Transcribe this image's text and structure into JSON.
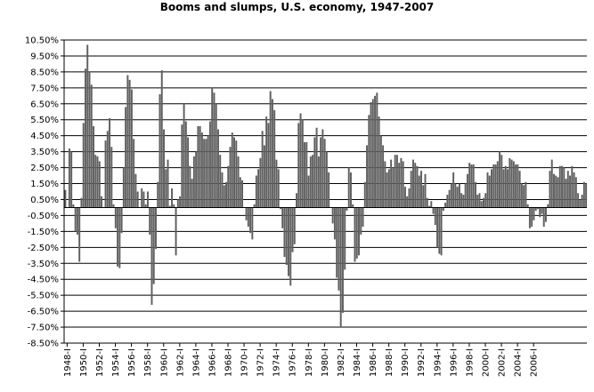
{
  "chart_data": {
    "type": "bar",
    "title": "Booms and slumps, U.S. economy, 1947-2007",
    "xlabel": "",
    "ylabel": "",
    "ylim": [
      -8.5,
      10.5
    ],
    "y_ticks": [
      "10.50%",
      "9.50%",
      "8.50%",
      "7.50%",
      "6.50%",
      "5.50%",
      "4.50%",
      "3.50%",
      "2.50%",
      "1.50%",
      "0.50%",
      "-0.50%",
      "-1.50%",
      "-2.50%",
      "-3.50%",
      "-4.50%",
      "-5.50%",
      "-6.50%",
      "-7.50%",
      "-8.50%"
    ],
    "x_ticks": [
      "1948-I",
      "1950-I",
      "1952-I",
      "1954-I",
      "1956-I",
      "1958-I",
      "1960-I",
      "1962-I",
      "1964-I",
      "1966-I",
      "1968-I",
      "1970-I",
      "1972-I",
      "1974-I",
      "1976-I",
      "1978-I",
      "1980-I",
      "1982-I",
      "1984-I",
      "1986-I",
      "1988-I",
      "1990-I",
      "1992-I",
      "1994-I",
      "1996-I",
      "1998-I",
      "2000-I",
      "2002-I",
      "2004-I",
      "2006-I"
    ],
    "grid": true,
    "legend": "none",
    "bar_color": "#606060",
    "series": [
      {
        "values": [
          1.1,
          0.0,
          3.7,
          3.5,
          0.2,
          -1.5,
          -1.7,
          -3.4,
          0.6,
          5.3,
          8.7,
          10.2,
          8.5,
          7.7,
          5.1,
          3.3,
          3.2,
          2.9,
          0.7,
          0.0,
          4.2,
          4.8,
          5.6,
          3.8,
          0.2,
          -1.3,
          -3.7,
          -3.8,
          -1.6,
          2.5,
          6.3,
          8.3,
          8.0,
          7.4,
          4.3,
          2.1,
          1.0,
          0.0,
          1.2,
          1.0,
          0.2,
          1.0,
          -1.7,
          -6.1,
          -4.8,
          -2.6,
          1.6,
          7.1,
          8.6,
          4.9,
          2.4,
          3.0,
          0.1,
          1.2,
          0.2,
          -3.0,
          0.5,
          0.7,
          5.2,
          6.5,
          5.4,
          4.4,
          2.6,
          1.8,
          3.2,
          3.5,
          5.1,
          5.1,
          4.7,
          4.3,
          4.3,
          4.5,
          5.4,
          7.5,
          7.2,
          6.5,
          4.9,
          3.3,
          2.2,
          1.4,
          1.6,
          2.6,
          3.8,
          4.7,
          4.4,
          4.2,
          3.2,
          1.9,
          1.7,
          0.0,
          -0.8,
          -1.2,
          -1.6,
          -2.0,
          0.2,
          2.0,
          2.4,
          3.1,
          4.8,
          3.9,
          5.7,
          5.3,
          7.3,
          6.8,
          6.1,
          3.0,
          2.4,
          -0.1,
          -1.3,
          -3.1,
          -3.6,
          -4.3,
          -4.9,
          -2.8,
          -2.3,
          0.9,
          5.3,
          5.9,
          5.5,
          4.1,
          4.1,
          2.0,
          3.2,
          3.3,
          4.4,
          5.0,
          3.2,
          4.4,
          4.9,
          4.3,
          3.5,
          2.2,
          0.0,
          -1.0,
          -2.0,
          -4.4,
          -5.2,
          -7.5,
          -6.6,
          -3.9,
          -0.2,
          2.5,
          2.2,
          0.2,
          -3.4,
          -3.2,
          -3.0,
          -1.7,
          -1.2,
          1.6,
          3.9,
          5.8,
          6.6,
          6.8,
          7.0,
          7.2,
          5.7,
          4.5,
          3.9,
          2.9,
          2.2,
          2.4,
          3.0,
          2.5,
          3.3,
          3.3,
          2.8,
          3.1,
          2.9,
          1.3,
          0.7,
          1.2,
          2.3,
          3.0,
          2.8,
          2.6,
          2.0,
          2.3,
          1.4,
          2.1,
          0.6,
          0.1,
          0.4,
          -0.4,
          -1.1,
          -2.5,
          -2.9,
          -3.0,
          -0.2,
          0.3,
          0.8,
          1.1,
          1.5,
          2.2,
          1.5,
          1.3,
          1.5,
          0.9,
          0.8,
          1.5,
          2.1,
          2.8,
          2.7,
          2.7,
          1.6,
          0.8,
          0.9,
          0.4,
          0.6,
          0.9,
          2.2,
          2.0,
          2.4,
          2.7,
          2.7,
          2.9,
          3.5,
          3.3,
          2.4,
          2.6,
          2.4,
          3.1,
          3.0,
          2.9,
          2.7,
          2.7,
          2.3,
          1.5,
          1.4,
          1.6,
          0.2,
          -1.3,
          -1.2,
          -0.8,
          -0.2,
          -0.1,
          -0.6,
          -0.4,
          -1.2,
          -0.9,
          0.2,
          2.3,
          3.0,
          2.1,
          2.0,
          1.9,
          2.6,
          2.6,
          2.5,
          1.8,
          2.3,
          2.0,
          2.6,
          2.2,
          1.9,
          0.9,
          0.5,
          0.8,
          1.6,
          1.5
        ]
      }
    ]
  }
}
